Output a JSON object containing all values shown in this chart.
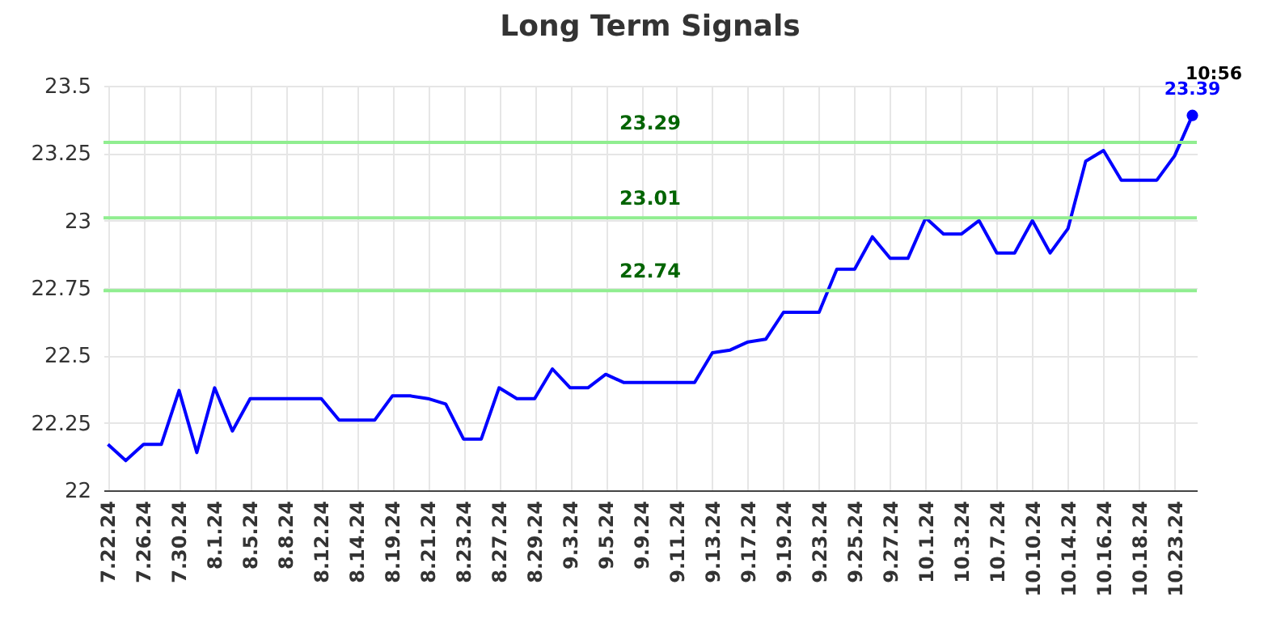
{
  "chart_data": {
    "type": "line",
    "title": "Long Term Signals",
    "categories": [
      "7.22.24",
      null,
      "7.26.24",
      null,
      "7.30.24",
      null,
      "8.1.24",
      null,
      "8.5.24",
      null,
      "8.8.24",
      null,
      "8.12.24",
      null,
      "8.14.24",
      null,
      "8.19.24",
      null,
      "8.21.24",
      null,
      "8.23.24",
      null,
      "8.27.24",
      null,
      "8.29.24",
      null,
      "9.3.24",
      null,
      "9.5.24",
      null,
      "9.9.24",
      null,
      "9.11.24",
      null,
      "9.13.24",
      null,
      "9.17.24",
      null,
      "9.19.24",
      null,
      "9.23.24",
      null,
      "9.25.24",
      null,
      "9.27.24",
      null,
      "10.1.24",
      null,
      "10.3.24",
      null,
      "10.7.24",
      null,
      "10.10.24",
      null,
      "10.14.24",
      null,
      "10.16.24",
      null,
      "10.18.24",
      null,
      "10.23.24",
      null
    ],
    "series": [
      {
        "color": "#0000ff",
        "values": [
          22.17,
          22.11,
          22.17,
          22.17,
          22.37,
          22.14,
          22.38,
          22.22,
          22.34,
          22.34,
          22.34,
          22.34,
          22.34,
          22.26,
          22.26,
          22.26,
          22.35,
          22.35,
          22.34,
          22.32,
          22.19,
          22.19,
          22.38,
          22.34,
          22.34,
          22.45,
          22.38,
          22.38,
          22.43,
          22.4,
          22.4,
          22.4,
          22.4,
          22.4,
          22.51,
          22.52,
          22.55,
          22.56,
          22.66,
          22.66,
          22.66,
          22.82,
          22.82,
          22.94,
          22.86,
          22.86,
          23.01,
          22.95,
          22.95,
          23.0,
          22.88,
          22.88,
          23.0,
          22.88,
          22.97,
          23.22,
          23.26,
          23.15,
          23.15,
          23.15,
          23.24,
          23.39
        ],
        "value_labels": [
          null,
          null,
          null,
          null,
          null,
          null,
          null,
          null,
          null,
          null,
          null,
          null,
          null,
          null,
          null,
          null,
          null,
          null,
          null,
          null,
          null,
          null,
          null,
          null,
          null,
          null,
          null,
          null,
          null,
          null,
          null,
          null,
          null,
          null,
          null,
          null,
          null,
          null,
          null,
          null,
          null,
          null,
          null,
          null,
          null,
          null,
          null,
          null,
          null,
          null,
          null,
          null,
          null,
          null,
          null,
          null,
          null,
          null,
          null,
          null,
          null,
          "23.39"
        ]
      }
    ],
    "ylim": [
      22,
      23.5
    ],
    "yticks": [
      22,
      22.25,
      22.5,
      22.75,
      23,
      23.25,
      23.5
    ],
    "grid": true,
    "ref_lines": [
      {
        "axis": "y",
        "value": 23.29,
        "label": "23.29",
        "color": "#90ee90"
      },
      {
        "axis": "y",
        "value": 23.01,
        "label": "23.01",
        "color": "#90ee90"
      },
      {
        "axis": "y",
        "value": 22.74,
        "label": "22.74",
        "color": "#90ee90"
      }
    ],
    "annotations": [
      "10:56"
    ]
  }
}
